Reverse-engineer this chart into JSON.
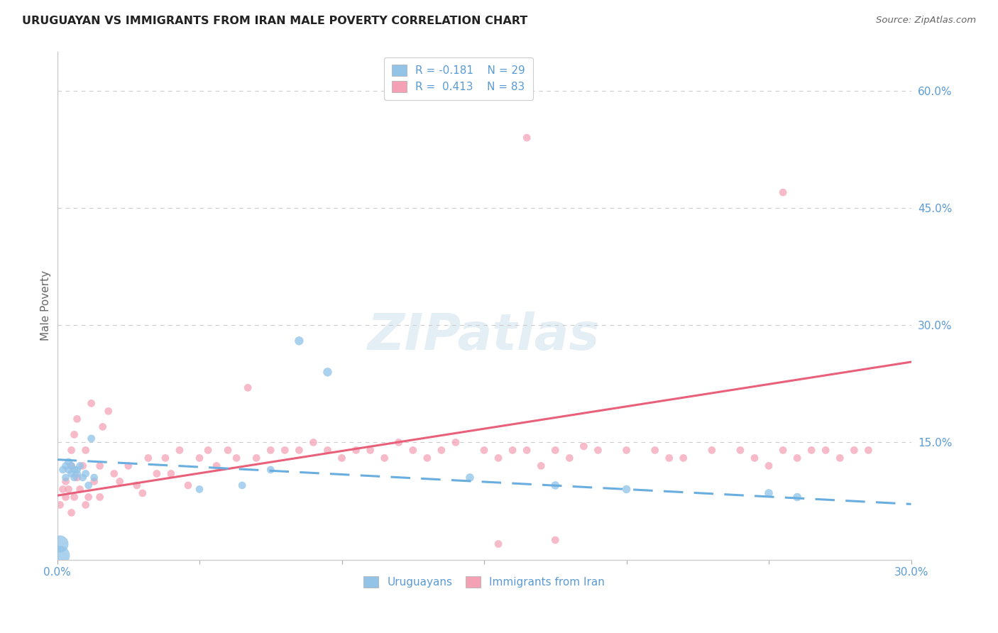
{
  "title": "URUGUAYAN VS IMMIGRANTS FROM IRAN MALE POVERTY CORRELATION CHART",
  "source": "Source: ZipAtlas.com",
  "ylabel": "Male Poverty",
  "xlim": [
    0.0,
    0.3
  ],
  "ylim": [
    0.0,
    0.65
  ],
  "xticks": [
    0.0,
    0.05,
    0.1,
    0.15,
    0.2,
    0.25,
    0.3
  ],
  "xtick_labels": [
    "0.0%",
    "",
    "",
    "",
    "",
    "",
    "30.0%"
  ],
  "ytick_positions": [
    0.15,
    0.3,
    0.45,
    0.6
  ],
  "ytick_labels": [
    "15.0%",
    "30.0%",
    "45.0%",
    "60.0%"
  ],
  "grid_color": "#cccccc",
  "blue_color": "#93c4e8",
  "pink_color": "#f4a0b5",
  "blue_line_color": "#6aaee0",
  "pink_line_color": "#e8607a",
  "label_color": "#5b9bd5",
  "axis_color": "#cccccc",
  "blue_slope": -0.19,
  "blue_intercept": 0.128,
  "pink_slope": 0.57,
  "pink_intercept": 0.082,
  "uru_x": [
    0.001,
    0.001,
    0.002,
    0.003,
    0.003,
    0.004,
    0.004,
    0.005,
    0.005,
    0.006,
    0.006,
    0.007,
    0.007,
    0.008,
    0.009,
    0.01,
    0.011,
    0.012,
    0.013,
    0.05,
    0.065,
    0.075,
    0.085,
    0.095,
    0.145,
    0.175,
    0.2,
    0.25,
    0.26
  ],
  "uru_y": [
    0.005,
    0.02,
    0.115,
    0.105,
    0.12,
    0.115,
    0.125,
    0.11,
    0.12,
    0.105,
    0.115,
    0.11,
    0.115,
    0.12,
    0.105,
    0.11,
    0.095,
    0.155,
    0.105,
    0.09,
    0.095,
    0.115,
    0.28,
    0.24,
    0.105,
    0.095,
    0.09,
    0.085,
    0.08
  ],
  "uru_s": [
    400,
    300,
    60,
    60,
    60,
    60,
    60,
    60,
    60,
    60,
    60,
    60,
    60,
    60,
    60,
    60,
    60,
    60,
    60,
    60,
    60,
    60,
    80,
    80,
    70,
    70,
    70,
    70,
    70
  ],
  "iran_x": [
    0.001,
    0.002,
    0.003,
    0.003,
    0.004,
    0.005,
    0.005,
    0.006,
    0.006,
    0.007,
    0.007,
    0.008,
    0.009,
    0.01,
    0.011,
    0.012,
    0.013,
    0.015,
    0.016,
    0.018,
    0.02,
    0.022,
    0.025,
    0.028,
    0.03,
    0.032,
    0.035,
    0.038,
    0.04,
    0.043,
    0.046,
    0.05,
    0.053,
    0.056,
    0.06,
    0.063,
    0.067,
    0.07,
    0.075,
    0.08,
    0.085,
    0.09,
    0.095,
    0.1,
    0.105,
    0.11,
    0.115,
    0.12,
    0.125,
    0.13,
    0.135,
    0.14,
    0.15,
    0.155,
    0.16,
    0.165,
    0.17,
    0.175,
    0.18,
    0.185,
    0.19,
    0.2,
    0.21,
    0.215,
    0.22,
    0.23,
    0.24,
    0.245,
    0.25,
    0.255,
    0.26,
    0.265,
    0.27,
    0.275,
    0.28,
    0.285,
    0.005,
    0.01,
    0.015,
    0.165,
    0.255,
    0.175,
    0.155
  ],
  "iran_y": [
    0.07,
    0.09,
    0.08,
    0.1,
    0.09,
    0.12,
    0.14,
    0.08,
    0.16,
    0.18,
    0.105,
    0.09,
    0.12,
    0.14,
    0.08,
    0.2,
    0.1,
    0.12,
    0.17,
    0.19,
    0.11,
    0.1,
    0.12,
    0.095,
    0.085,
    0.13,
    0.11,
    0.13,
    0.11,
    0.14,
    0.095,
    0.13,
    0.14,
    0.12,
    0.14,
    0.13,
    0.22,
    0.13,
    0.14,
    0.14,
    0.14,
    0.15,
    0.14,
    0.13,
    0.14,
    0.14,
    0.13,
    0.15,
    0.14,
    0.13,
    0.14,
    0.15,
    0.14,
    0.13,
    0.14,
    0.14,
    0.12,
    0.14,
    0.13,
    0.145,
    0.14,
    0.14,
    0.14,
    0.13,
    0.13,
    0.14,
    0.14,
    0.13,
    0.12,
    0.14,
    0.13,
    0.14,
    0.14,
    0.13,
    0.14,
    0.14,
    0.06,
    0.07,
    0.08,
    0.54,
    0.47,
    0.025,
    0.02
  ],
  "iran_s": [
    60,
    60,
    60,
    60,
    60,
    60,
    60,
    60,
    60,
    60,
    60,
    60,
    60,
    60,
    60,
    60,
    60,
    60,
    60,
    60,
    60,
    60,
    60,
    60,
    60,
    60,
    60,
    60,
    60,
    60,
    60,
    60,
    60,
    60,
    60,
    60,
    60,
    60,
    60,
    60,
    60,
    60,
    60,
    60,
    60,
    60,
    60,
    60,
    60,
    60,
    60,
    60,
    60,
    60,
    60,
    60,
    60,
    60,
    60,
    60,
    60,
    60,
    60,
    60,
    60,
    60,
    60,
    60,
    60,
    60,
    60,
    60,
    60,
    60,
    60,
    60,
    60,
    60,
    60,
    60,
    60,
    60,
    60
  ]
}
